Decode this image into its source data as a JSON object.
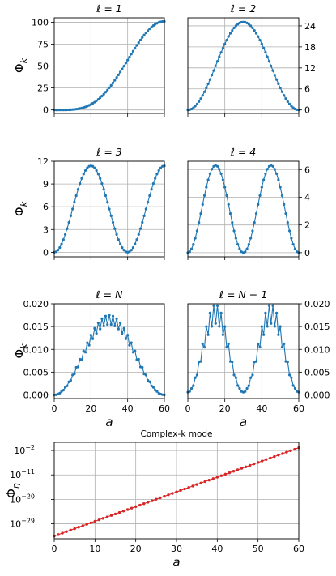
{
  "colors": {
    "series": "#1f77b4",
    "complex": "#d62728",
    "grid": "#b0b0b0"
  },
  "chart_data": [
    {
      "type": "line",
      "title": "ℓ = 1",
      "ylabel": "Φ",
      "ylabel_sub": "k",
      "xlabel": "",
      "xlim": [
        0,
        60
      ],
      "ylim": [
        -4,
        105
      ],
      "yticks": [
        0,
        25,
        50,
        75,
        100
      ],
      "ytick_labels": [
        "0",
        "25",
        "50",
        "75",
        "100"
      ],
      "ytick_side": "left",
      "xticks": [
        0,
        20,
        40,
        60
      ],
      "xtick_labels": [
        "",
        "",
        "",
        ""
      ],
      "n_points": 61,
      "shape": "sigmoid",
      "amplitude": 101,
      "grid": true
    },
    {
      "type": "line",
      "title": "ℓ = 2",
      "ylabel": "",
      "ylabel_sub": "",
      "xlabel": "",
      "xlim": [
        0,
        60
      ],
      "ylim": [
        -1,
        26.3
      ],
      "yticks": [
        0,
        6,
        12,
        18,
        24
      ],
      "ytick_labels": [
        "0",
        "6",
        "12",
        "18",
        "24"
      ],
      "ytick_side": "right",
      "xticks": [
        0,
        20,
        40,
        60
      ],
      "xtick_labels": [
        "",
        "",
        "",
        ""
      ],
      "n_points": 61,
      "shape": "hump",
      "amplitude": 25.1,
      "grid": true
    },
    {
      "type": "line",
      "title": "ℓ = 3",
      "ylabel": "Φ",
      "ylabel_sub": "k",
      "xlabel": "",
      "xlim": [
        0,
        60
      ],
      "ylim": [
        -0.6,
        12
      ],
      "yticks": [
        0,
        3,
        6,
        9,
        12
      ],
      "ytick_labels": [
        "0",
        "3",
        "6",
        "9",
        "12"
      ],
      "ytick_side": "left",
      "xticks": [
        0,
        20,
        40,
        60
      ],
      "xtick_labels": [
        "",
        "",
        "",
        ""
      ],
      "n_points": 61,
      "shape": "sin3",
      "amplitude": 11.4,
      "grid": true
    },
    {
      "type": "line",
      "title": "ℓ = 4",
      "ylabel": "",
      "ylabel_sub": "",
      "xlabel": "",
      "xlim": [
        0,
        60
      ],
      "ylim": [
        -0.3,
        6.6
      ],
      "yticks": [
        0,
        2,
        4,
        6
      ],
      "ytick_labels": [
        "0",
        "2",
        "4",
        "6"
      ],
      "ytick_side": "right",
      "xticks": [
        0,
        20,
        40,
        60
      ],
      "xtick_labels": [
        "",
        "",
        "",
        ""
      ],
      "n_points": 61,
      "shape": "twohump",
      "amplitude": 6.3,
      "grid": true
    },
    {
      "type": "line",
      "title": "ℓ = N",
      "ylabel": "Φ",
      "ylabel_sub": "k",
      "xlabel": "a",
      "xlim": [
        0,
        60
      ],
      "ylim": [
        -0.0008,
        0.02
      ],
      "yticks": [
        0,
        0.005,
        0.01,
        0.015,
        0.02
      ],
      "ytick_labels": [
        "0.000",
        "0.005",
        "0.010",
        "0.015",
        "0.020"
      ],
      "ytick_side": "left",
      "xticks": [
        0,
        20,
        40,
        60
      ],
      "xtick_labels": [
        "0",
        "20",
        "40",
        "60"
      ],
      "n_points": 61,
      "shape": "hump_zigzag",
      "amplitude": 0.0165,
      "grid": true
    },
    {
      "type": "line",
      "title": "ℓ = N − 1",
      "ylabel": "",
      "ylabel_sub": "",
      "xlabel": "a",
      "xlim": [
        0,
        60
      ],
      "ylim": [
        -0.0008,
        0.02
      ],
      "yticks": [
        0,
        0.005,
        0.01,
        0.015,
        0.02
      ],
      "ytick_labels": [
        "0.000",
        "0.005",
        "0.010",
        "0.015",
        "0.020"
      ],
      "ytick_side": "right",
      "xticks": [
        0,
        20,
        40,
        60
      ],
      "xtick_labels": [
        "0",
        "20",
        "40",
        "60"
      ],
      "n_points": 61,
      "shape": "twohump_zigzag",
      "amplitude": 0.0175,
      "grid": true
    },
    {
      "type": "line",
      "title": "Complex-k mode",
      "ylabel": "Φ",
      "ylabel_sub": "η",
      "xlabel": "a",
      "xlim": [
        0,
        60
      ],
      "ylim_log10": [
        -34.5,
        1
      ],
      "scale": "log",
      "yticks_log10": [
        -29,
        -20,
        -11,
        -2
      ],
      "ytick_labels": [
        "10",
        "10",
        "10",
        "10"
      ],
      "ytick_exponents": [
        "−29",
        "−20",
        "−11",
        "−2"
      ],
      "ytick_side": "left",
      "xticks": [
        0,
        10,
        20,
        30,
        40,
        50,
        60
      ],
      "xtick_labels": [
        "0",
        "10",
        "20",
        "30",
        "40",
        "50",
        "60"
      ],
      "n_points": 61,
      "shape": "exponential",
      "log10_start": -33.5,
      "log10_end": -1,
      "grid": true
    }
  ]
}
